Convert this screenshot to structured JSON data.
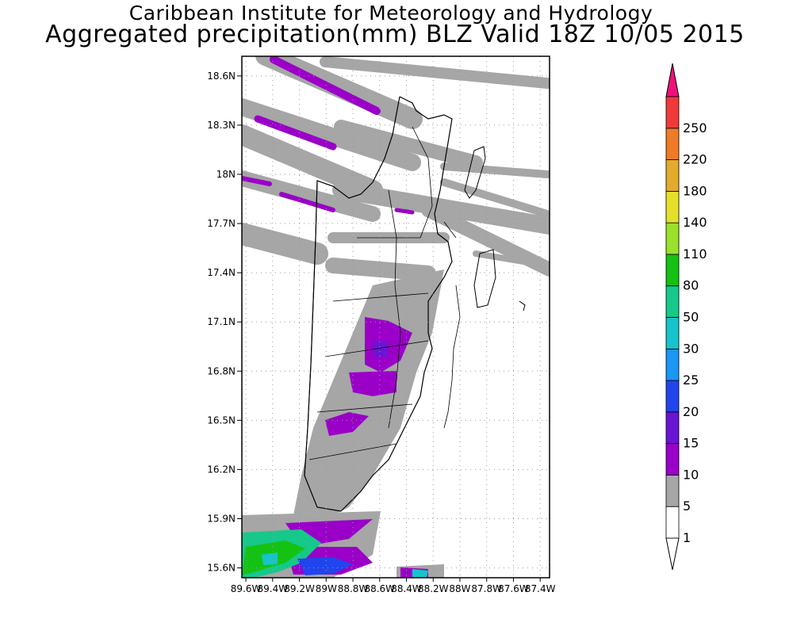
{
  "header": {
    "line1": "Caribbean Institute for Meteorology and Hydrology",
    "line2": "Aggregated precipitation(mm) BLZ Valid 18Z 10/05 2015"
  },
  "map": {
    "lat_ticks": [
      {
        "value": 18.6,
        "label": "18.6N"
      },
      {
        "value": 18.3,
        "label": "18.3N"
      },
      {
        "value": 18.0,
        "label": "18N"
      },
      {
        "value": 17.7,
        "label": "17.7N"
      },
      {
        "value": 17.4,
        "label": "17.4N"
      },
      {
        "value": 17.1,
        "label": "17.1N"
      },
      {
        "value": 16.8,
        "label": "16.8N"
      },
      {
        "value": 16.5,
        "label": "16.5N"
      },
      {
        "value": 16.2,
        "label": "16.2N"
      },
      {
        "value": 15.9,
        "label": "15.9N"
      },
      {
        "value": 15.6,
        "label": "15.6N"
      }
    ],
    "lon_ticks": [
      {
        "value": -89.6,
        "label": "89.6W"
      },
      {
        "value": -89.4,
        "label": "89.4W"
      },
      {
        "value": -89.2,
        "label": "89.2W"
      },
      {
        "value": -89.0,
        "label": "89W"
      },
      {
        "value": -88.8,
        "label": "88.8W"
      },
      {
        "value": -88.6,
        "label": "88.6W"
      },
      {
        "value": -88.4,
        "label": "88.4W"
      },
      {
        "value": -88.2,
        "label": "88.2W"
      },
      {
        "value": -88.0,
        "label": "88W"
      },
      {
        "value": -87.8,
        "label": "87.8W"
      },
      {
        "value": -87.6,
        "label": "87.6W"
      },
      {
        "value": -87.4,
        "label": "87.4W"
      }
    ],
    "lat_range": [
      15.54,
      18.72
    ],
    "lon_range": [
      -89.63,
      -87.33
    ],
    "grid": true
  },
  "legend": {
    "levels": [
      {
        "label": "1",
        "color": "#ffffff"
      },
      {
        "label": "5",
        "color": "#a6a6a6"
      },
      {
        "label": "10",
        "color": "#9a00c8"
      },
      {
        "label": "15",
        "color": "#6a14d6"
      },
      {
        "label": "20",
        "color": "#2045ee"
      },
      {
        "label": "25",
        "color": "#1a96f5"
      },
      {
        "label": "30",
        "color": "#16c4cb"
      },
      {
        "label": "50",
        "color": "#16c88a"
      },
      {
        "label": "80",
        "color": "#14c214"
      },
      {
        "label": "110",
        "color": "#9be02a"
      },
      {
        "label": "140",
        "color": "#e4e02a"
      },
      {
        "label": "180",
        "color": "#e4aa2a"
      },
      {
        "label": "220",
        "color": "#ef7b26"
      },
      {
        "label": "250",
        "color": "#f03a3a"
      }
    ],
    "top_color": "#f0107a"
  }
}
